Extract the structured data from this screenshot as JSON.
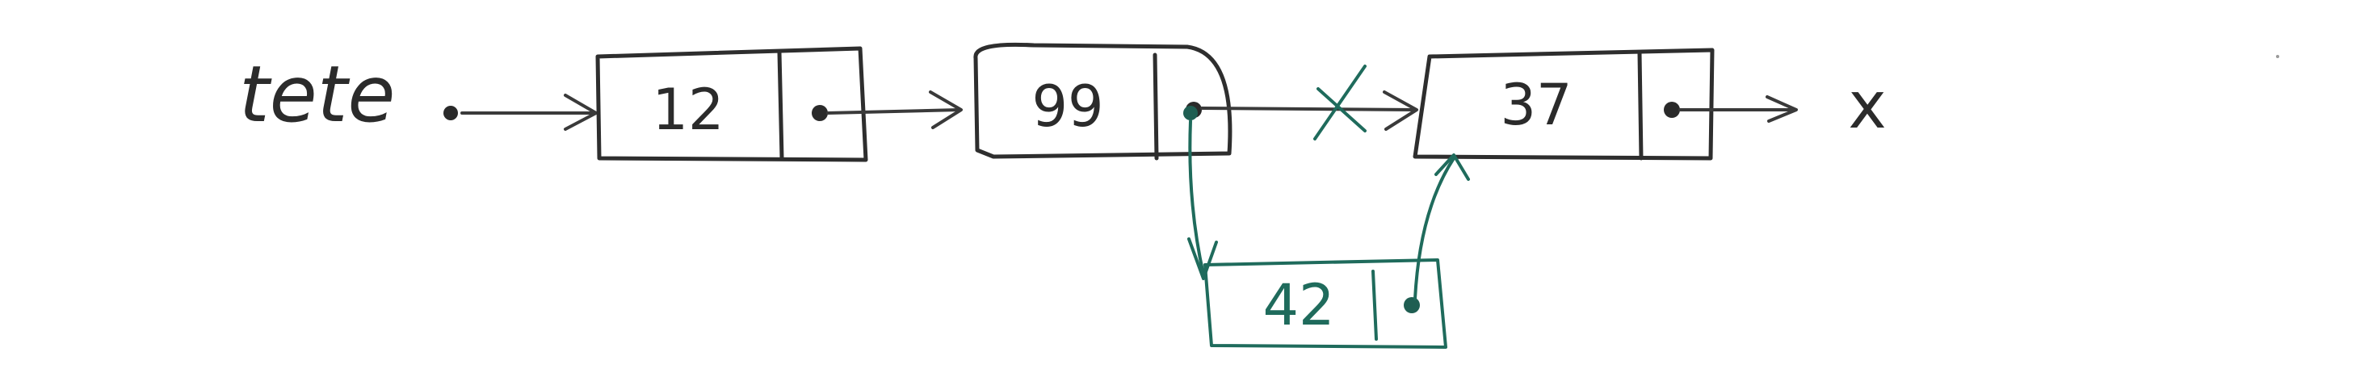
{
  "diagram": {
    "head_label": "tete",
    "nodes": [
      {
        "id": "n12",
        "value": "12"
      },
      {
        "id": "n99",
        "value": "99"
      },
      {
        "id": "n37",
        "value": "37"
      }
    ],
    "inserted_node": {
      "id": "n42",
      "value": "42"
    },
    "null_marker": "x",
    "colors": {
      "ink": "#2e2e2e",
      "insertion": "#1f6b5c",
      "background": "#ffffff"
    }
  }
}
